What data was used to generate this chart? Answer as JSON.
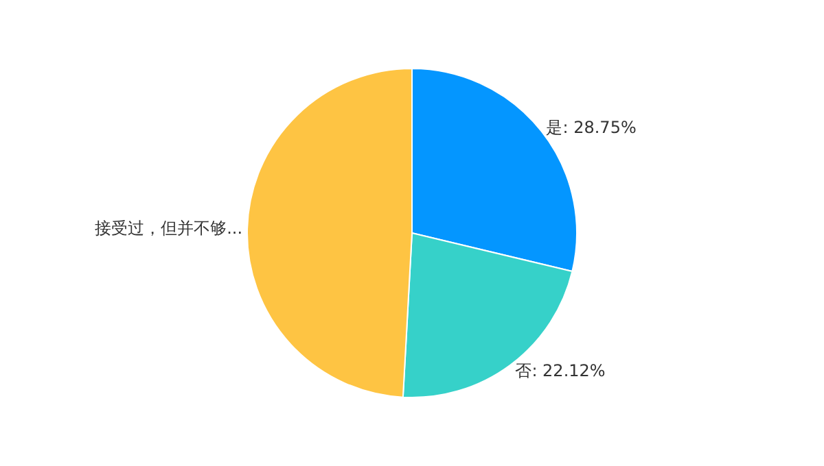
{
  "chart_data": {
    "type": "pie",
    "categories": [
      "是",
      "否",
      "接受过，但并不够..."
    ],
    "values": [
      28.75,
      22.12,
      49.13
    ],
    "value_labels": [
      "28.75%",
      "22.12%",
      null
    ],
    "colors": [
      "#0496ff",
      "#36d1c9",
      "#fec443"
    ],
    "legend": false
  }
}
